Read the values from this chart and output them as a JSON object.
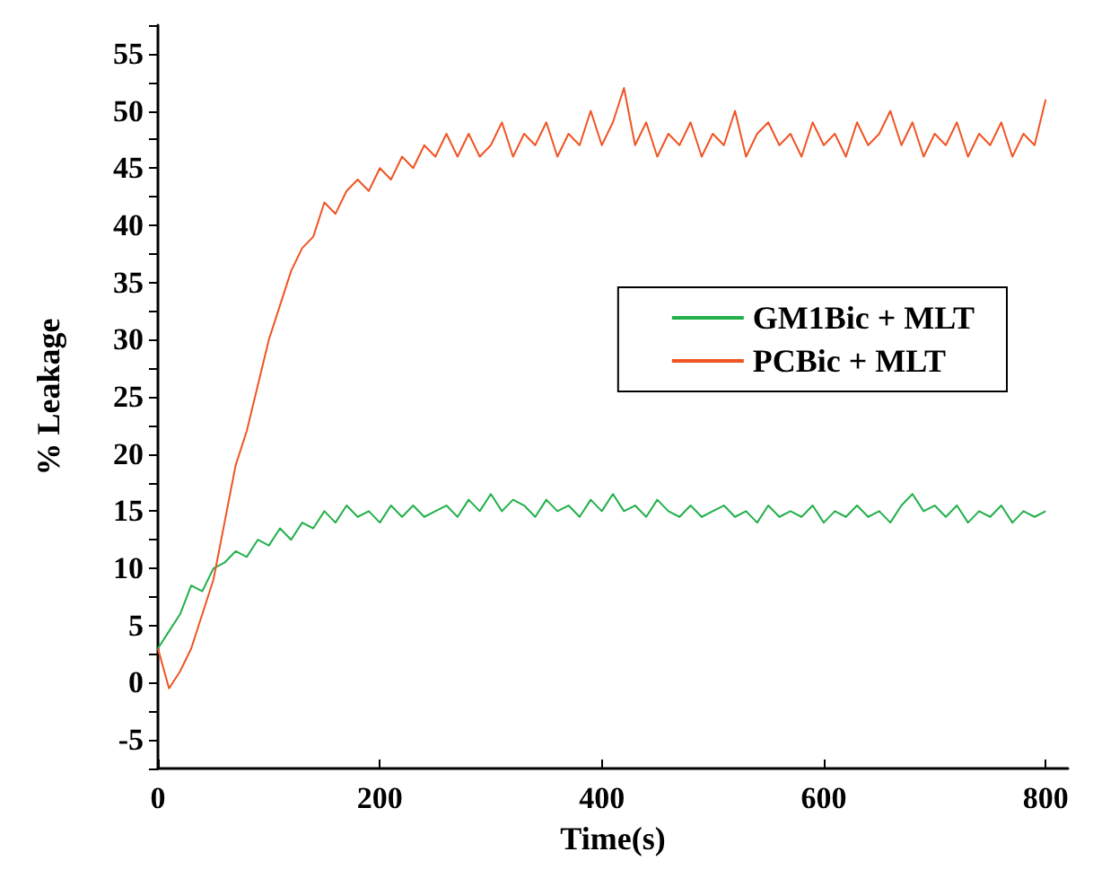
{
  "chart_data": {
    "type": "line",
    "xlabel": "Time(s)",
    "ylabel": "% Leakage",
    "x": [
      0,
      10,
      20,
      30,
      40,
      50,
      60,
      70,
      80,
      90,
      100,
      110,
      120,
      130,
      140,
      150,
      160,
      170,
      180,
      190,
      200,
      210,
      220,
      230,
      240,
      250,
      260,
      270,
      280,
      290,
      300,
      310,
      320,
      330,
      340,
      350,
      360,
      370,
      380,
      390,
      400,
      410,
      420,
      430,
      440,
      450,
      460,
      470,
      480,
      490,
      500,
      510,
      520,
      530,
      540,
      550,
      560,
      570,
      580,
      590,
      600,
      610,
      620,
      630,
      640,
      650,
      660,
      670,
      680,
      690,
      700,
      710,
      720,
      730,
      740,
      750,
      760,
      770,
      780,
      790,
      800
    ],
    "series": [
      {
        "name": "GM1Bic + MLT",
        "color": "#22b04a",
        "values": [
          3,
          4.5,
          6,
          8.5,
          8,
          10,
          10.5,
          11.5,
          11,
          12.5,
          12,
          13.5,
          12.5,
          14,
          13.5,
          15,
          14,
          15.5,
          14.5,
          15,
          14,
          15.5,
          14.5,
          15.5,
          14.5,
          15,
          15.5,
          14.5,
          16,
          15,
          16.5,
          15,
          16,
          15.5,
          14.5,
          16,
          15,
          15.5,
          14.5,
          16,
          15,
          16.5,
          15,
          15.5,
          14.5,
          16,
          15,
          14.5,
          15.5,
          14.5,
          15,
          15.5,
          14.5,
          15,
          14,
          15.5,
          14.5,
          15,
          14.5,
          15.5,
          14,
          15,
          14.5,
          15.5,
          14.5,
          15,
          14,
          15.5,
          16.5,
          15,
          15.5,
          14.5,
          15.5,
          14,
          15,
          14.5,
          15.5,
          14,
          15,
          14.5,
          15
        ]
      },
      {
        "name": "PCBic + MLT",
        "color": "#f05423",
        "values": [
          3,
          -0.5,
          1,
          3,
          6,
          9,
          14,
          19,
          22,
          26,
          30,
          33,
          36,
          38,
          39,
          42,
          41,
          43,
          44,
          43,
          45,
          44,
          46,
          45,
          47,
          46,
          48,
          46,
          48,
          46,
          47,
          49,
          46,
          48,
          47,
          49,
          46,
          48,
          47,
          50,
          47,
          49,
          52,
          47,
          49,
          46,
          48,
          47,
          49,
          46,
          48,
          47,
          50,
          46,
          48,
          49,
          47,
          48,
          46,
          49,
          47,
          48,
          46,
          49,
          47,
          48,
          50,
          47,
          49,
          46,
          48,
          47,
          49,
          46,
          48,
          47,
          49,
          46,
          48,
          47,
          51
        ]
      }
    ],
    "xlim": [
      0,
      820
    ],
    "xticks": [
      0,
      200,
      400,
      600,
      800
    ],
    "ylim": [
      -7.5,
      57.5
    ],
    "yticks": [
      {
        "value": -7.5,
        "label": null
      },
      -5,
      {
        "value": -2.5,
        "label": null
      },
      0,
      {
        "value": 2.5,
        "label": null
      },
      5,
      {
        "value": 7.5,
        "label": null
      },
      10,
      {
        "value": 12.5,
        "label": null
      },
      15,
      {
        "value": 17.5,
        "label": null
      },
      20,
      {
        "value": 22.5,
        "label": null
      },
      25,
      {
        "value": 27.5,
        "label": null
      },
      30,
      {
        "value": 32.5,
        "label": null
      },
      35,
      {
        "value": 37.5,
        "label": null
      },
      40,
      {
        "value": 42.5,
        "label": null
      },
      45,
      {
        "value": 47.5,
        "label": null
      },
      50,
      {
        "value": 52.5,
        "label": null
      },
      55,
      {
        "value": 57.5,
        "label": null
      }
    ],
    "legend": "right",
    "grid": false,
    "marker": "none",
    "line_style": "solid"
  }
}
